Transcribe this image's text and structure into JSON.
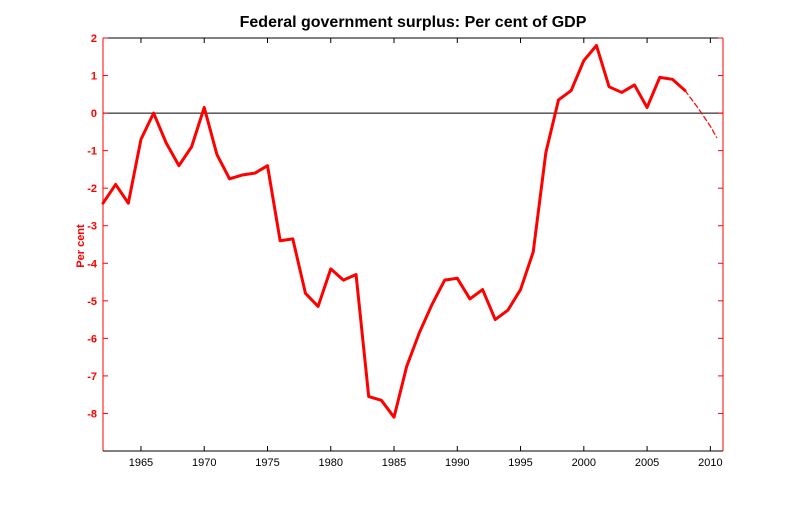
{
  "chart_data": {
    "type": "line",
    "title": "Federal government surplus: Per cent of GDP",
    "xlabel": "",
    "ylabel": "Per cent",
    "xlim": [
      1962,
      2011
    ],
    "ylim": [
      -9,
      2
    ],
    "x_ticks": [
      "1965",
      "1970",
      "1975",
      "1980",
      "1985",
      "1990",
      "1995",
      "2000",
      "2005",
      "2010"
    ],
    "y_ticks": [
      "2",
      "1",
      "0",
      "-1",
      "-2",
      "-3",
      "-4",
      "-5",
      "-6",
      "-7",
      "-8"
    ],
    "grid": false,
    "zero_line": true,
    "colors": {
      "line": "#ff0000",
      "axis": "#ff0000",
      "zero_line": "#000000"
    },
    "series": [
      {
        "style": "solid",
        "x": [
          1962,
          1963,
          1964,
          1965,
          1966,
          1967,
          1968,
          1969,
          1970,
          1971,
          1972,
          1973,
          1974,
          1975,
          1976,
          1977,
          1978,
          1979,
          1980,
          1981,
          1982,
          1983,
          1984,
          1985,
          1986,
          1987,
          1988,
          1989,
          1990,
          1991,
          1992,
          1993,
          1994,
          1995,
          1996,
          1997,
          1998,
          1999,
          2000,
          2001,
          2002,
          2003,
          2004,
          2005,
          2006,
          2007,
          2008
        ],
        "y": [
          -2.4,
          -1.9,
          -2.4,
          -0.7,
          0.0,
          -0.8,
          -1.4,
          -0.9,
          0.15,
          -1.1,
          -1.75,
          -1.65,
          -1.6,
          -1.4,
          -3.4,
          -3.35,
          -4.8,
          -5.15,
          -4.15,
          -4.45,
          -4.3,
          -7.55,
          -7.65,
          -8.1,
          -6.75,
          -5.85,
          -5.1,
          -4.45,
          -4.4,
          -4.95,
          -4.7,
          -5.5,
          -5.25,
          -4.7,
          -3.7,
          -1.05,
          0.35,
          0.6,
          1.4,
          1.8,
          0.7,
          0.55,
          0.75,
          0.15,
          0.95,
          0.9,
          0.6
        ]
      },
      {
        "style": "dashed",
        "x": [
          2008,
          2009,
          2010,
          2010.5
        ],
        "y": [
          0.6,
          0.15,
          -0.35,
          -0.65
        ]
      }
    ]
  }
}
